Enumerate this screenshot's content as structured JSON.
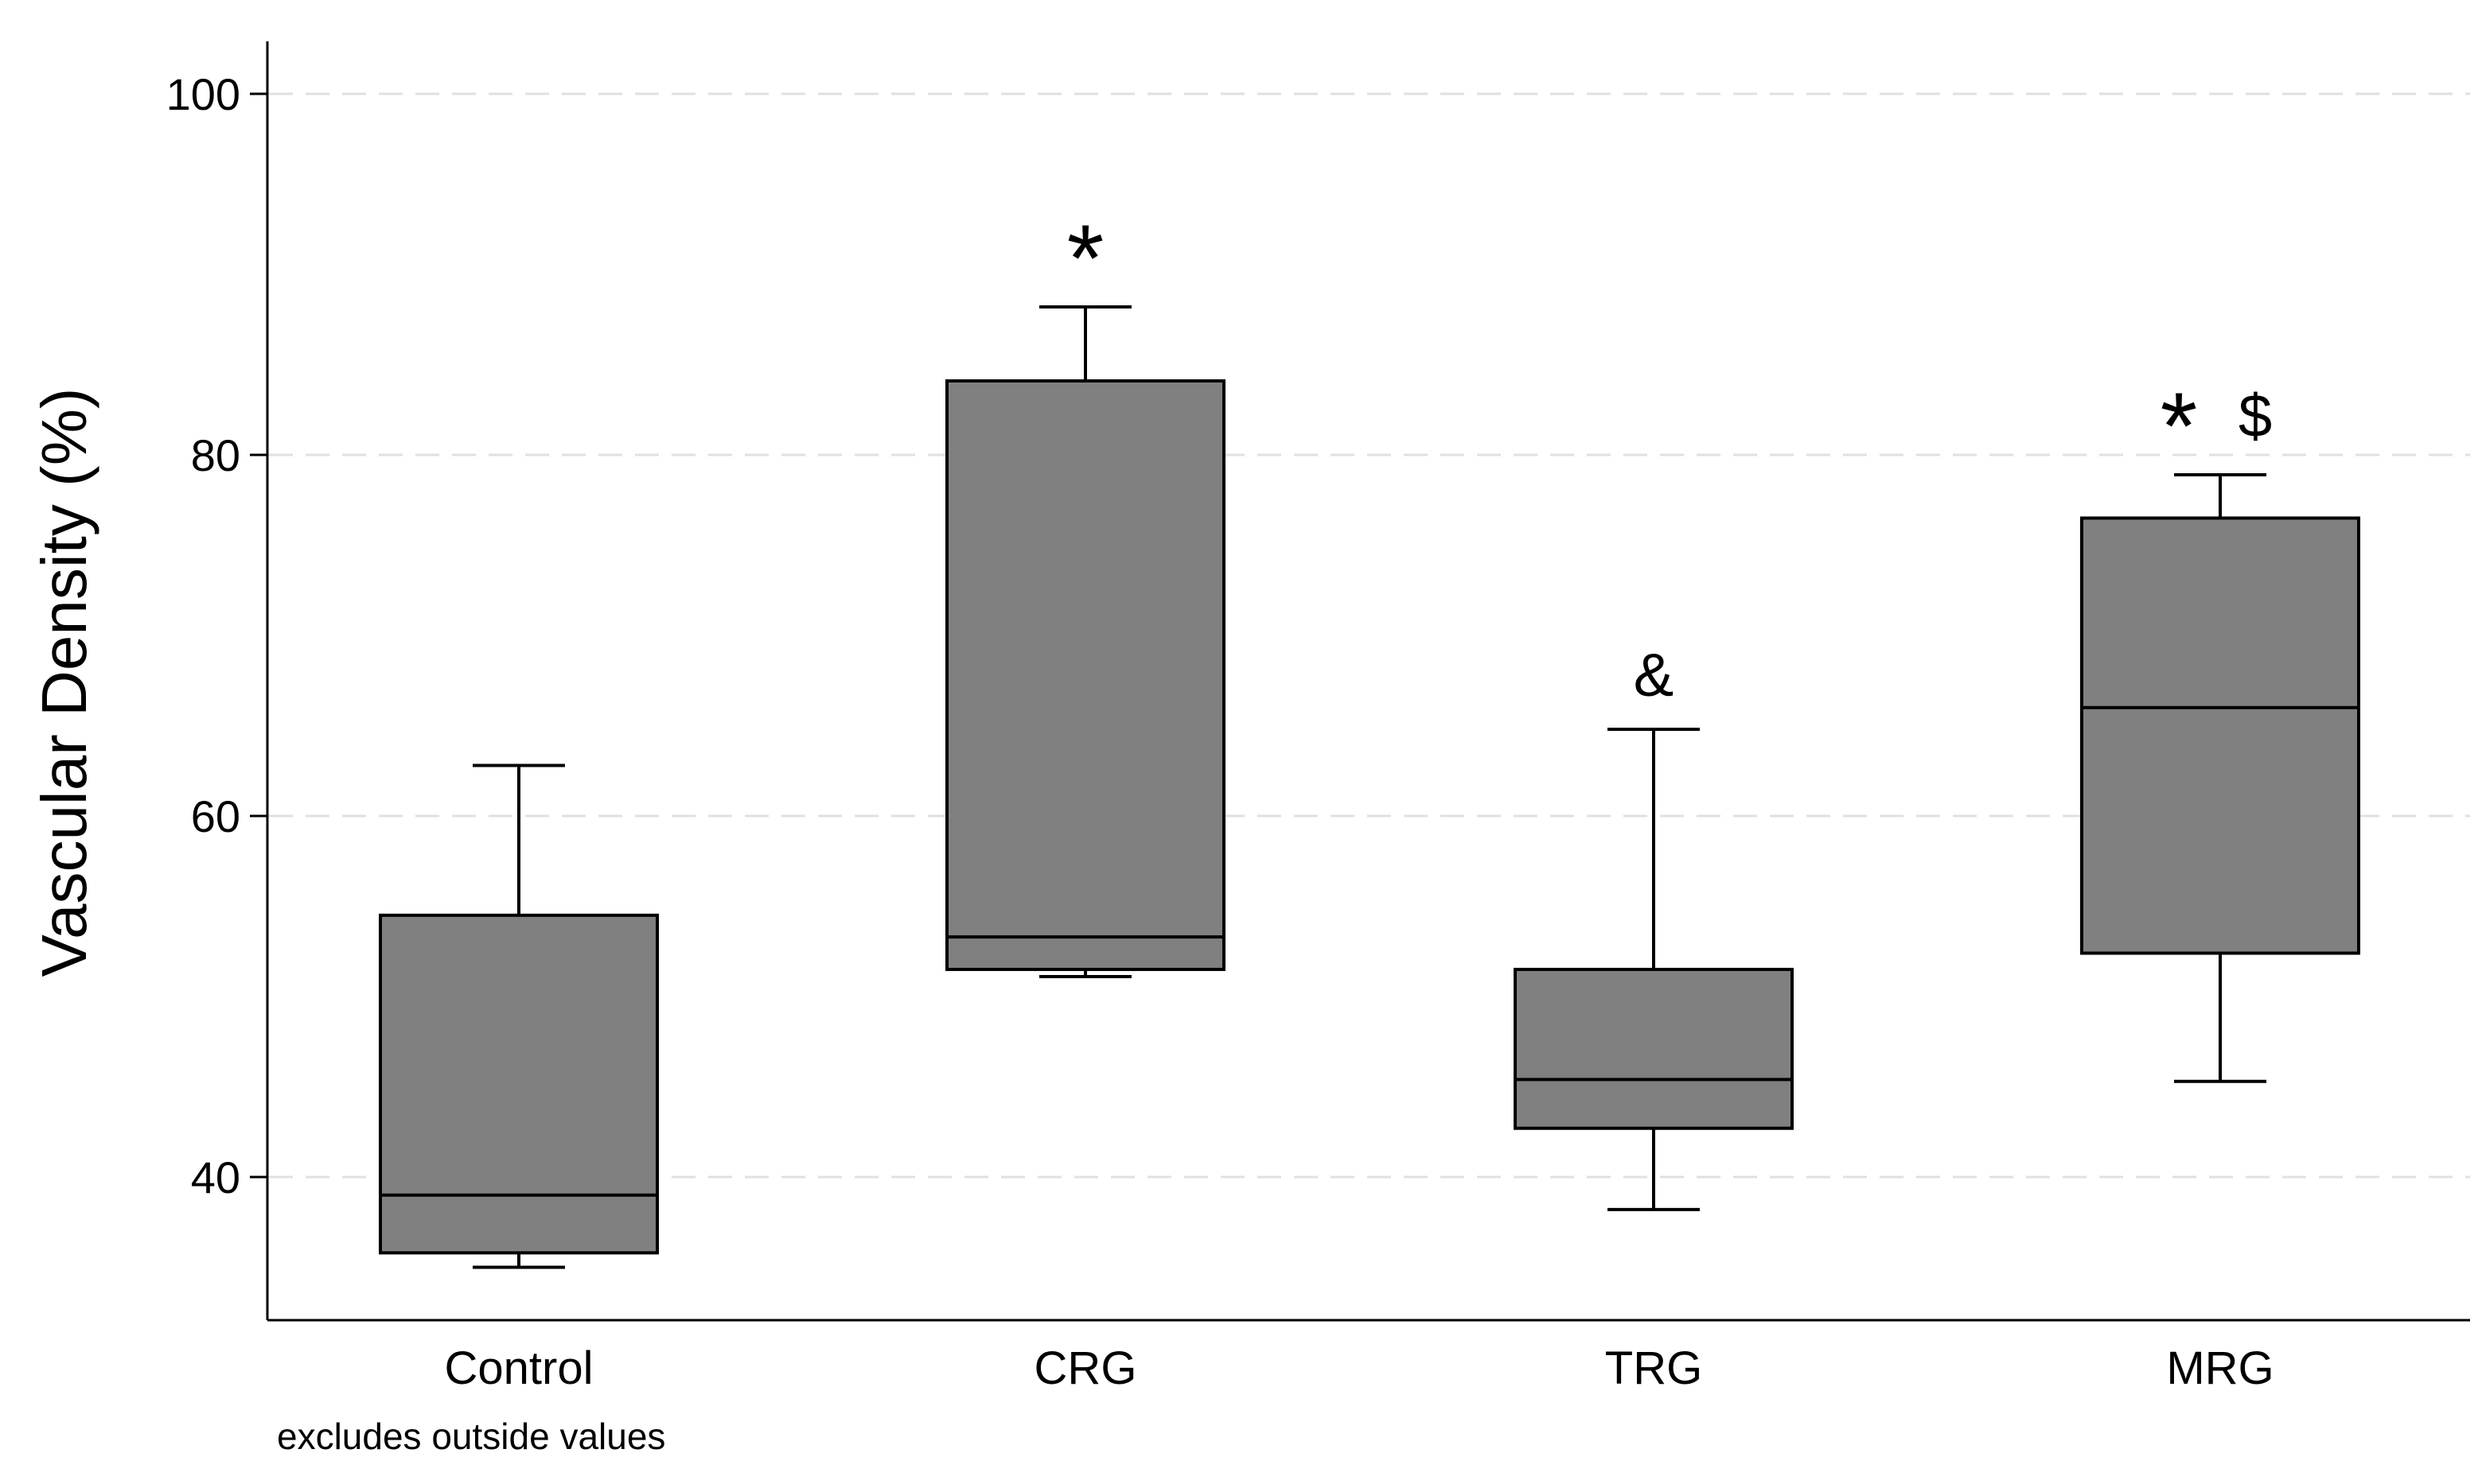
{
  "chart_data": {
    "type": "box",
    "title": "",
    "xlabel": "",
    "ylabel": "Vascular Density (%)",
    "ylim": [
      32,
      103
    ],
    "yticks": [
      40,
      60,
      80,
      100
    ],
    "grid": "horizontal dashed",
    "note": "excludes outside values",
    "categories": [
      "Control",
      "CRG",
      "TRG",
      "MRG"
    ],
    "boxes": [
      {
        "name": "Control",
        "whisker_low": 35.0,
        "q1": 35.8,
        "median": 39.0,
        "q3": 54.5,
        "whisker_high": 62.8,
        "annotation": ""
      },
      {
        "name": "CRG",
        "whisker_low": 51.1,
        "q1": 51.5,
        "median": 53.3,
        "q3": 84.1,
        "whisker_high": 88.2,
        "annotation": "*"
      },
      {
        "name": "TRG",
        "whisker_low": 38.2,
        "q1": 42.7,
        "median": 45.4,
        "q3": 51.5,
        "whisker_high": 64.8,
        "annotation": "&"
      },
      {
        "name": "MRG",
        "whisker_low": 45.3,
        "q1": 52.4,
        "median": 66.0,
        "q3": 76.5,
        "whisker_high": 78.9,
        "annotation": "*  $"
      }
    ],
    "colors": {
      "box_fill": "#808080",
      "stroke": "#000000",
      "grid": "#e0e0e0"
    }
  }
}
